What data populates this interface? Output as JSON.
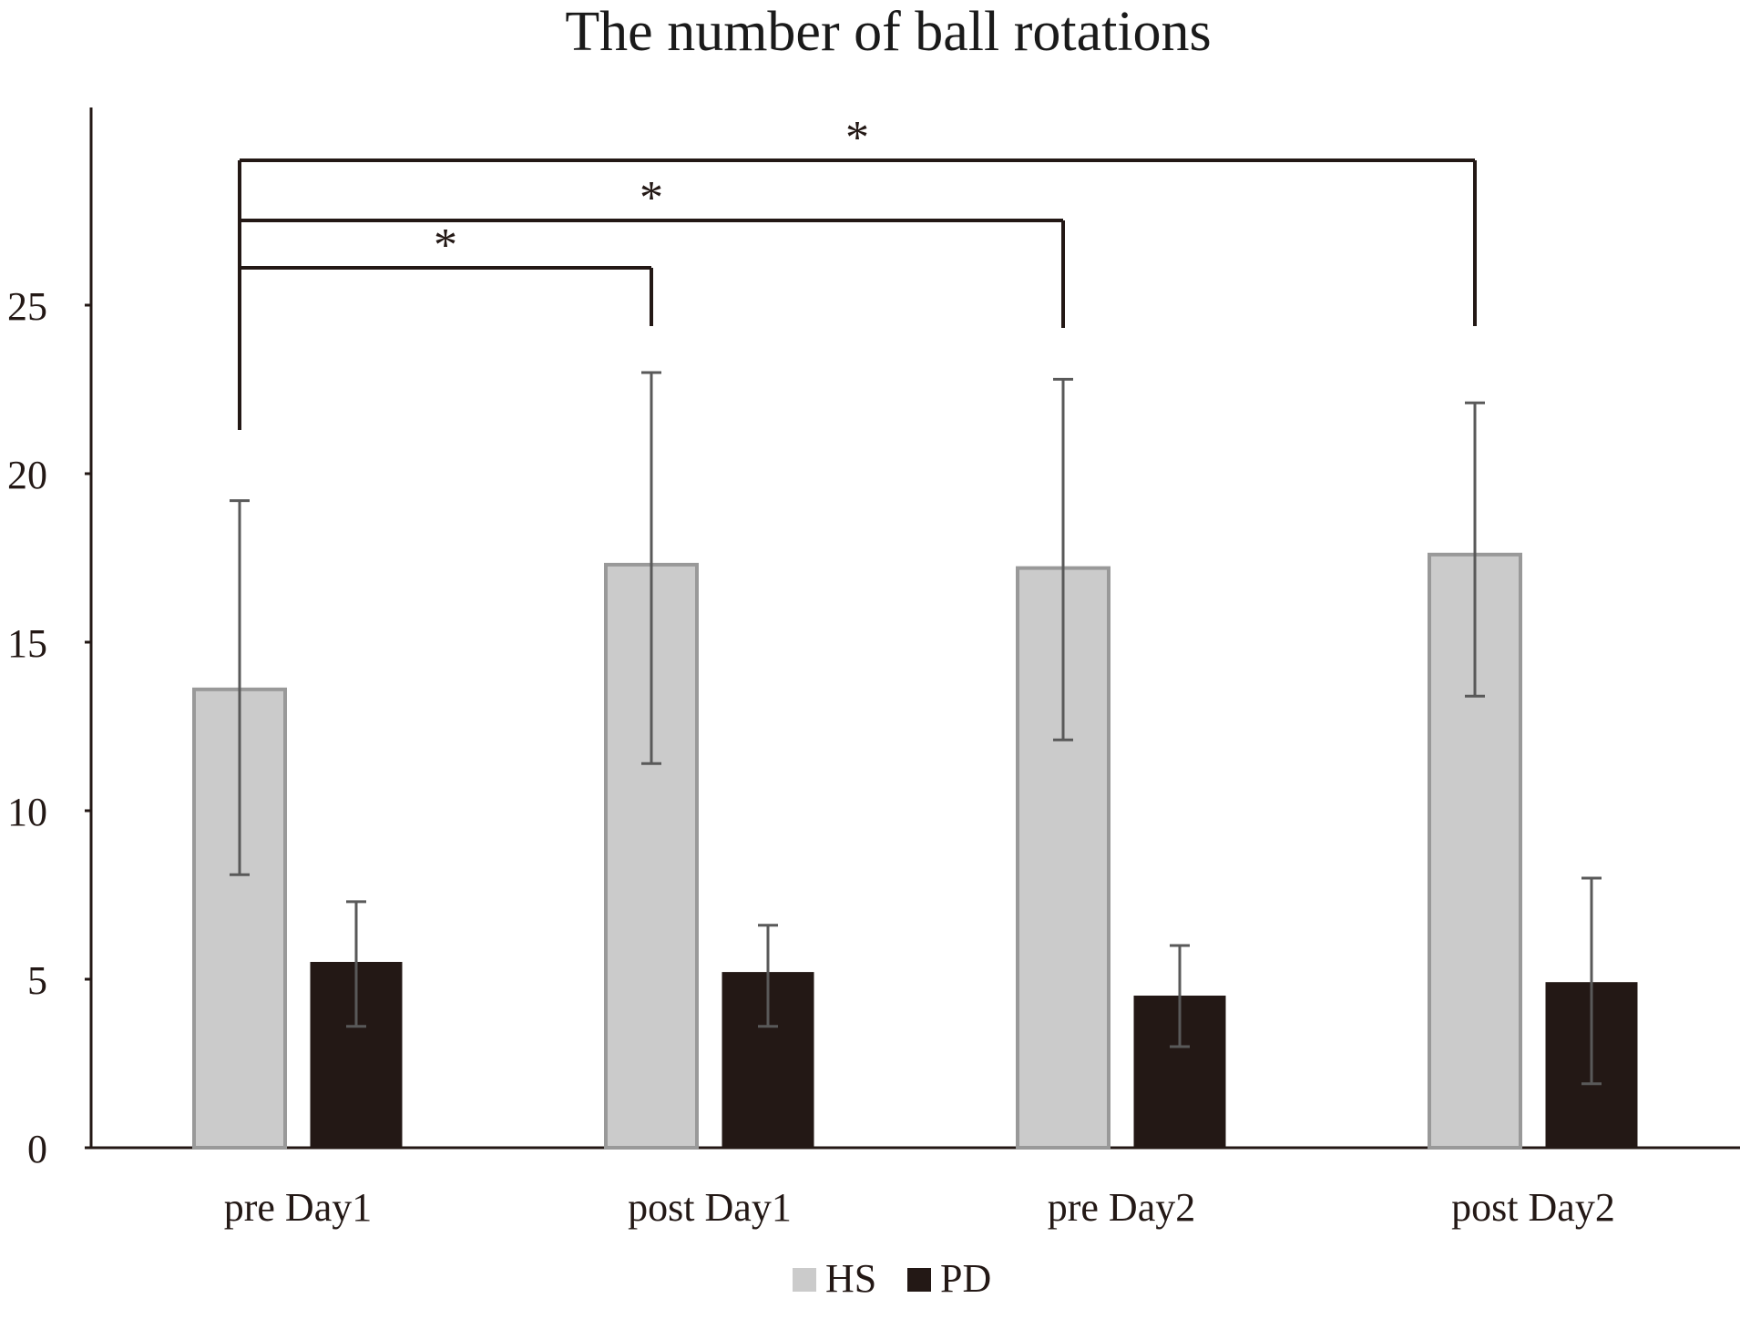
{
  "chart_data": {
    "type": "bar",
    "title": "The number of ball rotations",
    "xlabel": "",
    "ylabel": "",
    "categories": [
      "pre Day1",
      "post Day1",
      "pre Day2",
      "post Day2"
    ],
    "series": [
      {
        "name": "HS",
        "values": [
          13.6,
          17.3,
          17.2,
          17.6
        ],
        "error_low": [
          8.1,
          11.4,
          12.1,
          13.4
        ],
        "error_high": [
          19.2,
          23.0,
          22.8,
          22.1
        ],
        "fill": "#cbcbcb",
        "stroke": "#999999"
      },
      {
        "name": "PD",
        "values": [
          5.5,
          5.2,
          4.5,
          4.9
        ],
        "error_low": [
          3.6,
          3.6,
          3.0,
          1.9
        ],
        "error_high": [
          7.3,
          6.6,
          6.0,
          8.0
        ],
        "fill": "#231815",
        "stroke": "#231815"
      }
    ],
    "ylim": [
      0,
      30
    ],
    "yticks": [
      0,
      5,
      10,
      15,
      20,
      25
    ],
    "grid": false,
    "legend": "bottom-center",
    "significance": [
      {
        "from": "pre Day1",
        "to": "post Day1",
        "label": "*"
      },
      {
        "from": "pre Day1",
        "to": "pre Day2",
        "label": "*"
      },
      {
        "from": "pre Day1",
        "to": "post Day2",
        "label": "*"
      }
    ]
  }
}
